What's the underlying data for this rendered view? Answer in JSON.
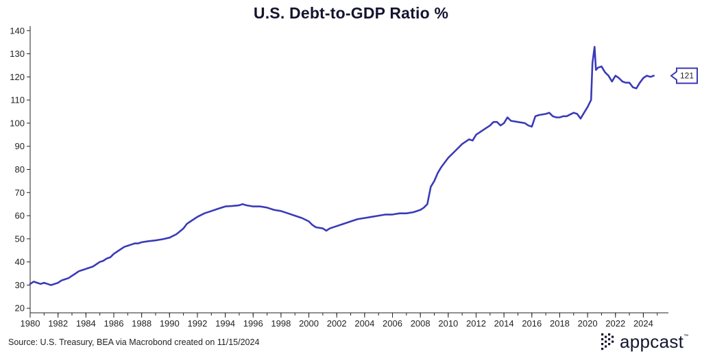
{
  "page": {
    "source": "Source: U.S. Treasury, BEA via Macrobond created on 11/15/2024",
    "brand": "appcast",
    "brand_mark": "™"
  },
  "colors": {
    "line": "#3a3ab8",
    "axis": "#222222",
    "text": "#14142e"
  },
  "chart_data": {
    "type": "line",
    "title": "U.S. Debt-to-GDP Ratio %",
    "xlabel": "",
    "ylabel": "",
    "xlim": [
      1980,
      2025.8
    ],
    "ylim": [
      18,
      142
    ],
    "grid": false,
    "x_ticks": [
      1980,
      1982,
      1984,
      1986,
      1988,
      1990,
      1992,
      1994,
      1996,
      1998,
      2000,
      2002,
      2004,
      2006,
      2008,
      2010,
      2012,
      2014,
      2016,
      2018,
      2020,
      2022,
      2024
    ],
    "y_ticks": [
      20,
      30,
      40,
      50,
      60,
      70,
      80,
      90,
      100,
      110,
      120,
      130,
      140
    ],
    "end_label": "121",
    "series": [
      {
        "name": "U.S. Debt-to-GDP Ratio %",
        "x": [
          1980.0,
          1980.25,
          1980.5,
          1980.75,
          1981.0,
          1981.25,
          1981.5,
          1981.75,
          1982.0,
          1982.25,
          1982.5,
          1982.75,
          1983.0,
          1983.25,
          1983.5,
          1983.75,
          1984.0,
          1984.25,
          1984.5,
          1984.75,
          1985.0,
          1985.25,
          1985.5,
          1985.75,
          1986.0,
          1986.25,
          1986.5,
          1986.75,
          1987.0,
          1987.25,
          1987.5,
          1987.75,
          1988.0,
          1988.5,
          1989.0,
          1989.5,
          1990.0,
          1990.5,
          1991.0,
          1991.25,
          1991.5,
          1992.0,
          1992.5,
          1993.0,
          1993.5,
          1994.0,
          1994.5,
          1995.0,
          1995.25,
          1995.5,
          1996.0,
          1996.5,
          1997.0,
          1997.5,
          1998.0,
          1998.5,
          1999.0,
          1999.5,
          2000.0,
          2000.25,
          2000.5,
          2001.0,
          2001.25,
          2001.5,
          2002.0,
          2002.5,
          2003.0,
          2003.5,
          2004.0,
          2004.5,
          2005.0,
          2005.5,
          2006.0,
          2006.5,
          2007.0,
          2007.5,
          2008.0,
          2008.25,
          2008.5,
          2008.75,
          2009.0,
          2009.25,
          2009.5,
          2009.75,
          2010.0,
          2010.5,
          2011.0,
          2011.5,
          2011.75,
          2012.0,
          2012.5,
          2013.0,
          2013.25,
          2013.5,
          2013.75,
          2014.0,
          2014.25,
          2014.5,
          2015.0,
          2015.5,
          2015.75,
          2016.0,
          2016.25,
          2016.5,
          2017.0,
          2017.25,
          2017.5,
          2017.75,
          2018.0,
          2018.25,
          2018.5,
          2019.0,
          2019.25,
          2019.5,
          2019.75,
          2020.0,
          2020.25,
          2020.35,
          2020.5,
          2020.6,
          2020.75,
          2021.0,
          2021.25,
          2021.5,
          2021.75,
          2022.0,
          2022.25,
          2022.5,
          2022.75,
          2023.0,
          2023.25,
          2023.5,
          2023.75,
          2024.0,
          2024.25,
          2024.5,
          2024.75
        ],
        "values": [
          30.5,
          31.5,
          31.0,
          30.5,
          31.0,
          30.5,
          30.0,
          30.5,
          31.0,
          32.0,
          32.5,
          33.0,
          34.0,
          35.0,
          36.0,
          36.5,
          37.0,
          37.5,
          38.0,
          39.0,
          40.0,
          40.5,
          41.5,
          42.0,
          43.5,
          44.5,
          45.5,
          46.5,
          47.0,
          47.5,
          48.0,
          48.0,
          48.5,
          49.0,
          49.3,
          49.8,
          50.5,
          52.0,
          54.5,
          56.5,
          57.5,
          59.5,
          61.0,
          62.0,
          63.0,
          64.0,
          64.2,
          64.5,
          65.0,
          64.5,
          64.0,
          64.0,
          63.5,
          62.5,
          62.0,
          61.0,
          60.0,
          59.0,
          57.5,
          56.0,
          55.0,
          54.5,
          53.5,
          54.5,
          55.5,
          56.5,
          57.5,
          58.5,
          59.0,
          59.5,
          60.0,
          60.5,
          60.5,
          61.0,
          61.0,
          61.5,
          62.5,
          63.5,
          65.0,
          72.5,
          75.0,
          78.5,
          81.0,
          83.0,
          85.0,
          88.0,
          91.0,
          93.0,
          92.5,
          95.0,
          97.0,
          99.0,
          100.5,
          100.5,
          99.0,
          100.0,
          102.5,
          101.0,
          100.5,
          100.0,
          99.0,
          98.5,
          103.0,
          103.5,
          104.0,
          104.5,
          103.0,
          102.5,
          102.5,
          103.0,
          103.0,
          104.5,
          104.0,
          102.0,
          104.5,
          107.0,
          110.0,
          126.0,
          133.0,
          123.0,
          124.0,
          124.5,
          122.0,
          120.5,
          118.0,
          120.5,
          119.5,
          118.0,
          117.5,
          117.5,
          115.5,
          115.0,
          117.5,
          119.5,
          120.5,
          120.0,
          120.5
        ]
      }
    ]
  }
}
